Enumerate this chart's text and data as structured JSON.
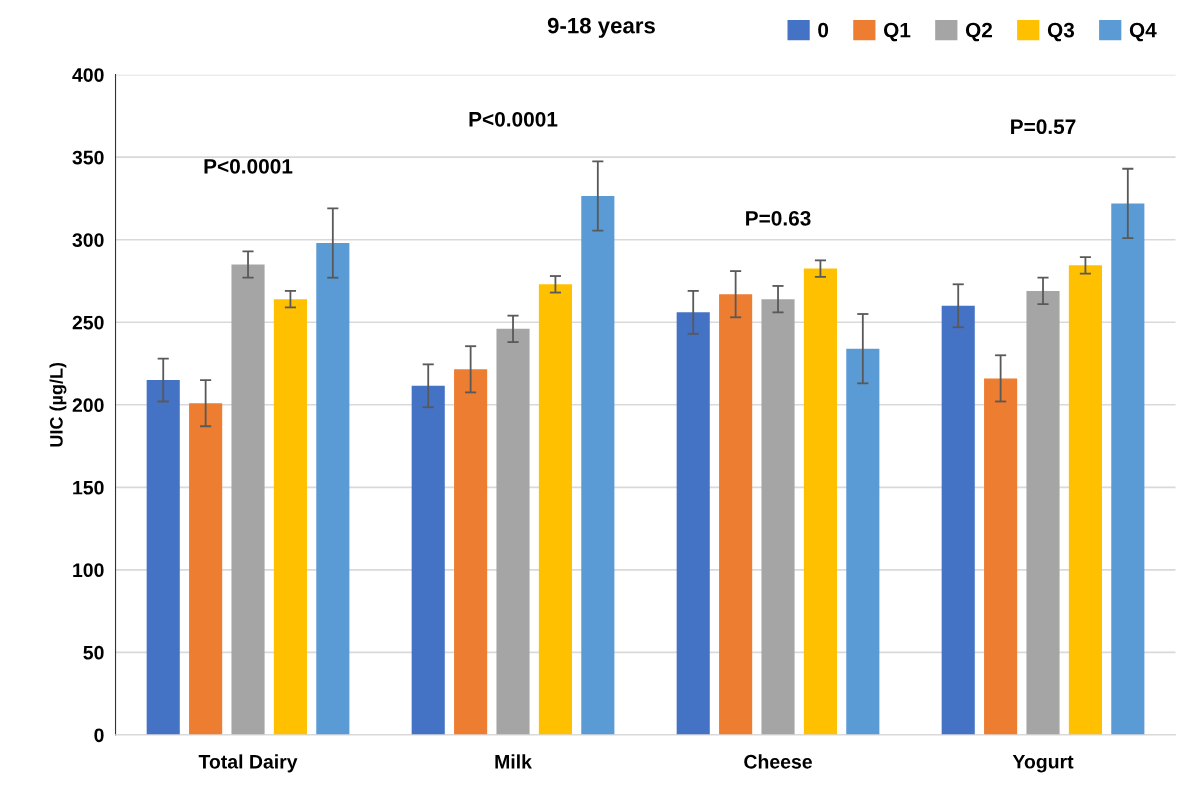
{
  "chart_data": {
    "type": "bar",
    "title": "9-18 years",
    "ylabel": "UIC (µg/L)",
    "categories": [
      "Total Dairy",
      "Milk",
      "Cheese",
      "Yogurt"
    ],
    "series": [
      {
        "name": "0",
        "color": "#4472c4",
        "values": [
          215,
          211.5,
          256,
          260
        ],
        "errors": [
          13,
          13,
          13,
          13
        ]
      },
      {
        "name": "Q1",
        "color": "#ed7d31",
        "values": [
          201,
          221.5,
          267,
          216
        ],
        "errors": [
          14,
          14,
          14,
          14
        ]
      },
      {
        "name": "Q2",
        "color": "#a5a5a5",
        "values": [
          285,
          246,
          264,
          269
        ],
        "errors": [
          8,
          8,
          8,
          8
        ]
      },
      {
        "name": "Q3",
        "color": "#ffc000",
        "values": [
          264,
          273,
          282.5,
          284.5
        ],
        "errors": [
          5,
          5,
          5,
          5
        ]
      },
      {
        "name": "Q4",
        "color": "#5b9bd5",
        "values": [
          298,
          326.5,
          234,
          322
        ],
        "errors": [
          21,
          21,
          21,
          21
        ]
      }
    ],
    "ylim": [
      0,
      400
    ],
    "yticks": [
      0,
      50,
      100,
      150,
      200,
      250,
      300,
      350,
      400
    ],
    "grid": "y",
    "legend": "top right",
    "annotations": [
      "P<0.0001",
      "P<0.0001",
      "P=0.63",
      "P=0.57"
    ]
  }
}
